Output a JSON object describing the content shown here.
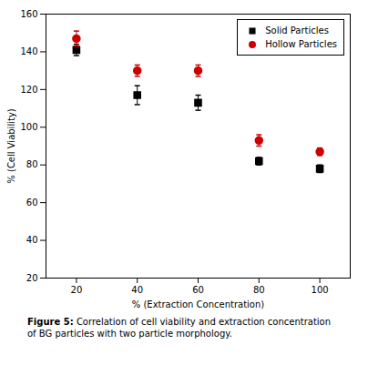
{
  "chart_data": {
    "type": "scatter",
    "xlabel": "% (Extraction Concentration)",
    "ylabel": "% (Cell Viability)",
    "x": [
      20,
      40,
      60,
      80,
      100
    ],
    "series": [
      {
        "name": "Solid Particles",
        "color": "#000000",
        "marker": "square",
        "values": [
          141,
          117,
          113,
          82,
          78
        ],
        "yerr": [
          3,
          5,
          4,
          2,
          2
        ]
      },
      {
        "name": "Hollow Particles",
        "color": "#cc0000",
        "marker": "circle",
        "values": [
          147,
          130,
          130,
          93,
          87
        ],
        "yerr": [
          4,
          3,
          3,
          3,
          2
        ]
      }
    ],
    "xlim": [
      10,
      110
    ],
    "xticks": [
      20,
      40,
      60,
      80,
      100
    ],
    "ylim": [
      20,
      160
    ],
    "yticks": [
      20,
      40,
      60,
      80,
      100,
      120,
      140,
      160
    ],
    "grid": false,
    "legend": "upper right",
    "caption_bold": "Figure 5:",
    "caption": " Correlation of cell viability and extraction concentration\nof BG particles with two particle morphology."
  }
}
